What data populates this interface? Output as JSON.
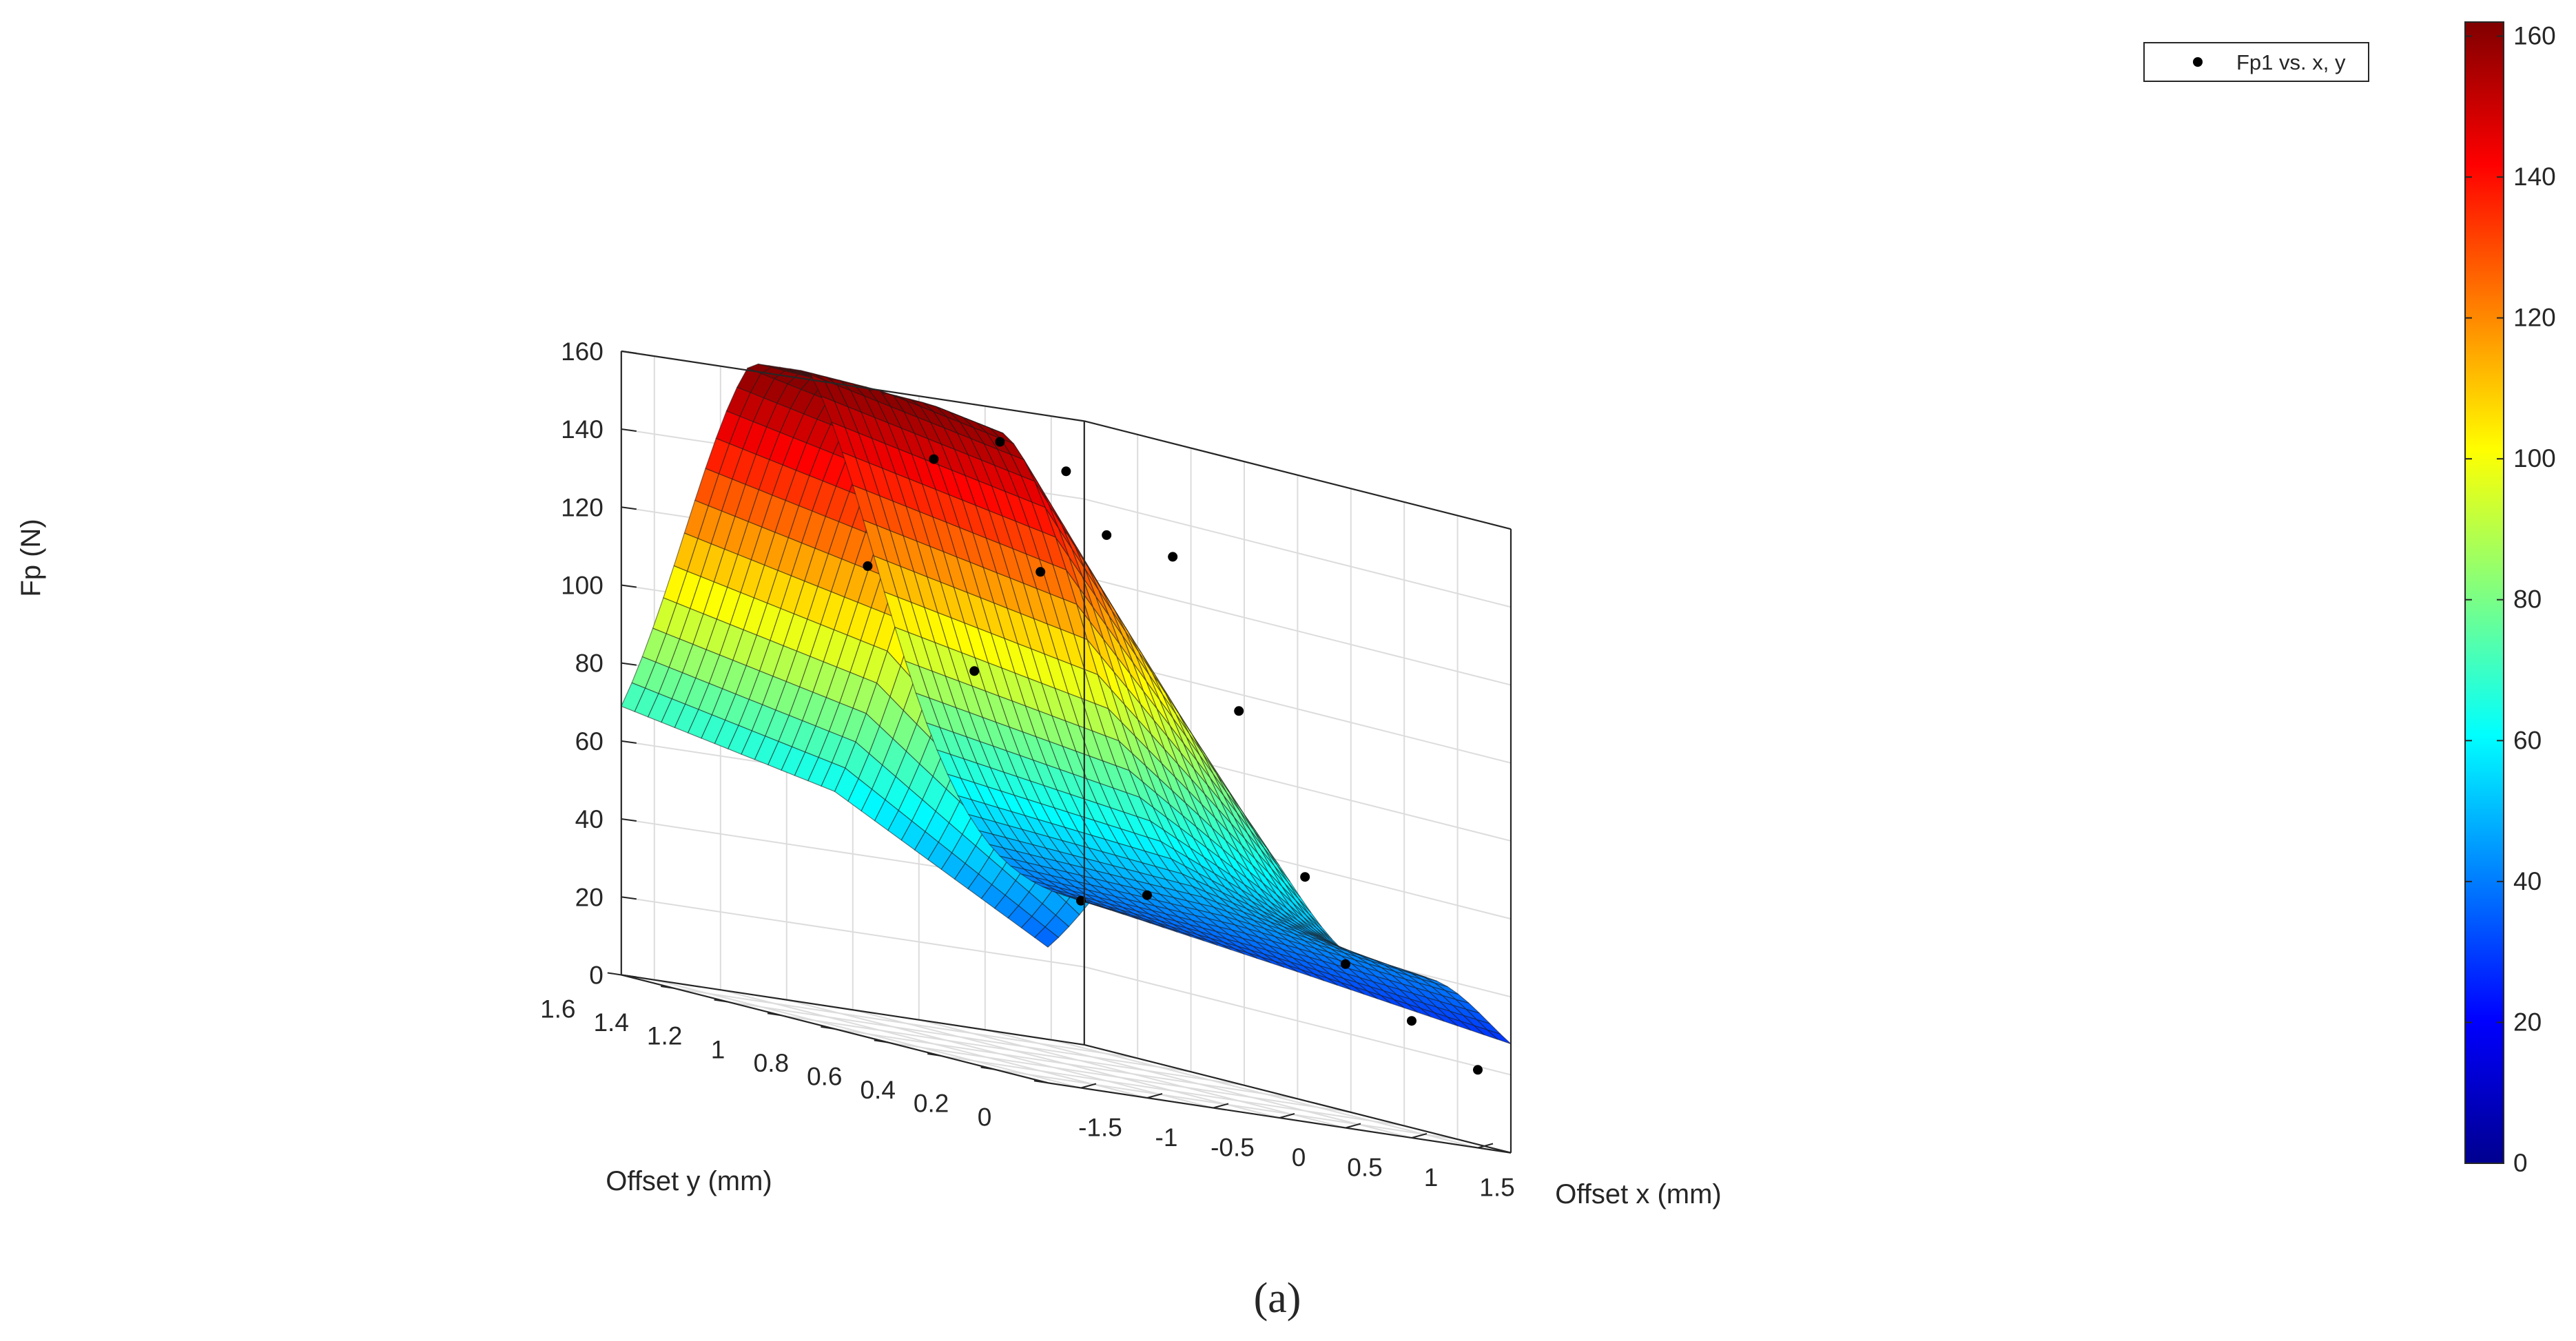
{
  "chart_data": {
    "type": "surface",
    "title": "",
    "xlabel": "Offset x (mm)",
    "ylabel": "Offset y (mm)",
    "zlabel": "Fp (N)",
    "xlim": [
      -1.75,
      1.75
    ],
    "ylim": [
      0,
      1.6
    ],
    "zlim": [
      0,
      160
    ],
    "x_ticks": [
      -1.5,
      -1,
      -0.5,
      0,
      0.5,
      1,
      1.5
    ],
    "x_tick_labels": [
      "-1.5",
      "-1",
      "-0.5",
      "0",
      "0.5",
      "1",
      "1.5"
    ],
    "y_ticks": [
      0,
      0.2,
      0.4,
      0.6,
      0.8,
      1,
      1.2,
      1.4,
      1.6
    ],
    "y_tick_labels": [
      "0",
      "0.2",
      "0.4",
      "0.6",
      "0.8",
      "1",
      "1.2",
      "1.4",
      "1.6"
    ],
    "z_ticks": [
      0,
      20,
      40,
      60,
      80,
      100,
      120,
      140,
      160
    ],
    "z_tick_labels": [
      "0",
      "20",
      "40",
      "60",
      "80",
      "100",
      "120",
      "140",
      "160"
    ],
    "colorbar": {
      "colormap": "jet",
      "range": [
        0,
        162
      ],
      "ticks": [
        0,
        20,
        40,
        60,
        80,
        100,
        120,
        140,
        160
      ],
      "tick_labels": [
        "0",
        "20",
        "40",
        "60",
        "80",
        "100",
        "120",
        "140",
        "160"
      ]
    },
    "grid": true,
    "legend": {
      "position": "top-right",
      "entries": [
        "Fp1 vs. x, y"
      ]
    },
    "series": [
      {
        "name": "Fp1 vs. x, y",
        "type": "scatter3",
        "points": [
          {
            "x": -1.5,
            "y": 0.8,
            "z": 120
          },
          {
            "x": -1.0,
            "y": 0.8,
            "z": 150
          },
          {
            "x": -1.0,
            "y": 0.4,
            "z": 128
          },
          {
            "x": -1.5,
            "y": 0.4,
            "z": 100
          },
          {
            "x": -0.5,
            "y": 0.8,
            "z": 157
          },
          {
            "x": -0.5,
            "y": 0.4,
            "z": 140
          },
          {
            "x": 0.0,
            "y": 0.8,
            "z": 152
          },
          {
            "x": 0.0,
            "y": 0.4,
            "z": 137
          },
          {
            "x": 0.5,
            "y": 0.4,
            "z": 100
          },
          {
            "x": -1.5,
            "y": 0.0,
            "z": 48
          },
          {
            "x": -1.0,
            "y": 0.0,
            "z": 52
          },
          {
            "x": 0.5,
            "y": 0.0,
            "z": 42
          },
          {
            "x": 1.0,
            "y": 0.4,
            "z": 60
          },
          {
            "x": 1.0,
            "y": 0.0,
            "z": 30
          },
          {
            "x": 1.5,
            "y": 0.0,
            "z": 20
          }
        ]
      }
    ]
  },
  "caption": "(a)"
}
